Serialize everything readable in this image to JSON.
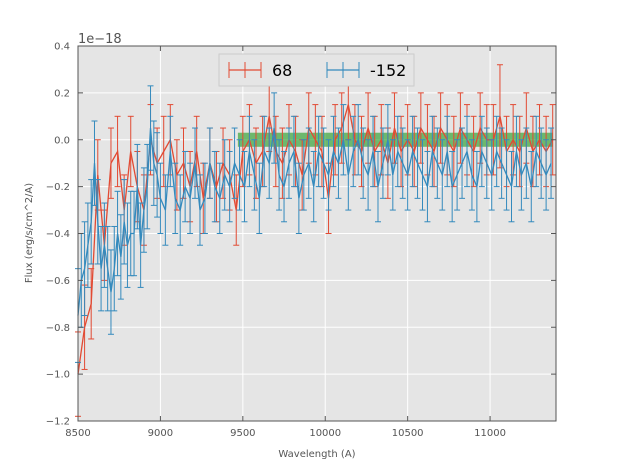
{
  "chart_data": {
    "type": "line",
    "error_bars": true,
    "xlabel": "Wavelength (A)",
    "ylabel": "Flux (erg/s/cm^2/A)",
    "y_offset_label": "1e−18",
    "xlim": [
      8500,
      11400
    ],
    "ylim": [
      -1.2,
      0.4
    ],
    "xticks": [
      8500,
      9000,
      9500,
      10000,
      10500,
      11000
    ],
    "xtick_labels": [
      "8500",
      "9000",
      "9500",
      "10000",
      "10500",
      "11000"
    ],
    "yticks": [
      -1.2,
      -1.0,
      -0.8,
      -0.6,
      -0.4,
      -0.2,
      0.0,
      0.2,
      0.4
    ],
    "ytick_labels": [
      "−1.2",
      "−1.0",
      "−0.8",
      "−0.6",
      "−0.4",
      "−0.2",
      "0.0",
      "0.2",
      "0.4"
    ],
    "grid": true,
    "legend_position": "top-center",
    "background_color": "#e5e5e5",
    "band": {
      "x_start": 9470,
      "x_end": 11380,
      "y_low": -0.03,
      "y_high": 0.03,
      "color": "#2ca02c"
    },
    "series": [
      {
        "name": "68",
        "color": "#e24a33",
        "x": [
          8500,
          8540,
          8580,
          8620,
          8660,
          8700,
          8740,
          8780,
          8820,
          8860,
          8900,
          8940,
          8980,
          9020,
          9060,
          9100,
          9140,
          9180,
          9220,
          9260,
          9300,
          9340,
          9380,
          9420,
          9460,
          9500,
          9540,
          9580,
          9620,
          9660,
          9700,
          9740,
          9780,
          9820,
          9860,
          9900,
          9940,
          9980,
          10020,
          10060,
          10100,
          10140,
          10180,
          10220,
          10260,
          10300,
          10340,
          10380,
          10420,
          10460,
          10500,
          10540,
          10580,
          10620,
          10660,
          10700,
          10740,
          10780,
          10820,
          10860,
          10900,
          10940,
          10980,
          11020,
          11060,
          11100,
          11140,
          11180,
          11220,
          11260,
          11300,
          11340,
          11380
        ],
        "y": [
          -1.0,
          -0.8,
          -0.7,
          -0.15,
          -0.45,
          -0.1,
          -0.05,
          -0.3,
          -0.05,
          -0.2,
          -0.3,
          0.0,
          -0.1,
          -0.05,
          0.0,
          -0.15,
          -0.1,
          -0.2,
          -0.05,
          -0.25,
          -0.1,
          -0.2,
          -0.1,
          -0.15,
          -0.3,
          -0.05,
          0.0,
          -0.1,
          -0.05,
          0.1,
          -0.05,
          -0.1,
          0.0,
          -0.05,
          -0.15,
          0.05,
          0.0,
          -0.05,
          -0.25,
          0.0,
          0.05,
          0.15,
          0.0,
          -0.05,
          0.05,
          -0.05,
          0.0,
          -0.1,
          0.05,
          -0.05,
          0.0,
          -0.05,
          0.05,
          0.0,
          -0.05,
          0.05,
          0.0,
          -0.05,
          0.05,
          0.0,
          -0.05,
          0.05,
          0.0,
          0.0,
          0.1,
          -0.05,
          0.0,
          -0.05,
          0.05,
          -0.05,
          0.0,
          -0.05,
          0.0
        ],
        "err": [
          0.18,
          0.18,
          0.15,
          0.15,
          0.15,
          0.15,
          0.15,
          0.15,
          0.15,
          0.15,
          0.15,
          0.15,
          0.15,
          0.15,
          0.15,
          0.15,
          0.15,
          0.15,
          0.15,
          0.15,
          0.15,
          0.15,
          0.15,
          0.15,
          0.15,
          0.15,
          0.15,
          0.15,
          0.15,
          0.15,
          0.15,
          0.15,
          0.15,
          0.15,
          0.15,
          0.15,
          0.15,
          0.15,
          0.15,
          0.15,
          0.15,
          0.15,
          0.15,
          0.15,
          0.15,
          0.15,
          0.15,
          0.15,
          0.15,
          0.15,
          0.15,
          0.15,
          0.15,
          0.15,
          0.15,
          0.15,
          0.15,
          0.15,
          0.15,
          0.15,
          0.15,
          0.15,
          0.15,
          0.15,
          0.22,
          0.15,
          0.15,
          0.15,
          0.15,
          0.15,
          0.15,
          0.15,
          0.15
        ]
      },
      {
        "name": "-152",
        "color": "#348abd",
        "x": [
          8500,
          8520,
          8540,
          8560,
          8580,
          8600,
          8620,
          8640,
          8660,
          8680,
          8700,
          8720,
          8740,
          8760,
          8780,
          8800,
          8820,
          8840,
          8860,
          8880,
          8900,
          8920,
          8940,
          8960,
          8980,
          9000,
          9030,
          9060,
          9090,
          9120,
          9150,
          9180,
          9210,
          9240,
          9270,
          9300,
          9330,
          9360,
          9390,
          9420,
          9450,
          9480,
          9510,
          9540,
          9570,
          9600,
          9630,
          9660,
          9690,
          9720,
          9750,
          9780,
          9810,
          9840,
          9870,
          9900,
          9930,
          9960,
          9990,
          10020,
          10050,
          10080,
          10110,
          10140,
          10170,
          10200,
          10230,
          10260,
          10290,
          10320,
          10350,
          10380,
          10410,
          10440,
          10470,
          10500,
          10530,
          10560,
          10590,
          10620,
          10650,
          10680,
          10710,
          10740,
          10770,
          10800,
          10830,
          10860,
          10890,
          10920,
          10950,
          10980,
          11010,
          11040,
          11070,
          11100,
          11130,
          11160,
          11190,
          11220,
          11250,
          11280,
          11310,
          11340,
          11370
        ],
        "y": [
          -0.75,
          -0.6,
          -0.55,
          -0.45,
          -0.35,
          -0.1,
          -0.35,
          -0.55,
          -0.45,
          -0.55,
          -0.65,
          -0.55,
          -0.4,
          -0.5,
          -0.35,
          -0.45,
          -0.4,
          -0.4,
          -0.2,
          -0.45,
          -0.3,
          -0.2,
          0.05,
          -0.1,
          -0.15,
          -0.25,
          -0.3,
          -0.05,
          -0.25,
          -0.3,
          -0.2,
          -0.25,
          -0.1,
          -0.3,
          -0.25,
          -0.1,
          -0.2,
          -0.25,
          -0.15,
          -0.2,
          -0.1,
          -0.15,
          -0.2,
          -0.05,
          -0.15,
          -0.25,
          -0.05,
          -0.1,
          0.05,
          -0.15,
          -0.2,
          -0.1,
          -0.05,
          -0.25,
          -0.15,
          -0.1,
          -0.2,
          -0.05,
          -0.1,
          -0.15,
          -0.05,
          -0.1,
          0.0,
          -0.15,
          -0.05,
          0.0,
          -0.1,
          -0.15,
          -0.05,
          -0.2,
          -0.1,
          0.0,
          -0.15,
          -0.05,
          -0.1,
          -0.15,
          -0.05,
          -0.1,
          -0.15,
          -0.2,
          -0.05,
          -0.1,
          -0.15,
          -0.05,
          -0.2,
          -0.15,
          -0.1,
          -0.05,
          -0.15,
          -0.2,
          -0.05,
          -0.1,
          -0.15,
          -0.05,
          -0.1,
          -0.15,
          -0.2,
          -0.05,
          -0.15,
          -0.1,
          -0.2,
          -0.05,
          -0.1,
          -0.15,
          -0.1
        ],
        "err": [
          0.2,
          0.2,
          0.2,
          0.18,
          0.18,
          0.18,
          0.18,
          0.18,
          0.18,
          0.18,
          0.18,
          0.18,
          0.18,
          0.18,
          0.18,
          0.18,
          0.18,
          0.18,
          0.18,
          0.18,
          0.18,
          0.18,
          0.18,
          0.18,
          0.18,
          0.15,
          0.15,
          0.15,
          0.15,
          0.15,
          0.15,
          0.15,
          0.15,
          0.15,
          0.15,
          0.15,
          0.15,
          0.15,
          0.15,
          0.15,
          0.15,
          0.15,
          0.15,
          0.15,
          0.15,
          0.15,
          0.15,
          0.15,
          0.15,
          0.15,
          0.15,
          0.15,
          0.15,
          0.15,
          0.15,
          0.15,
          0.15,
          0.15,
          0.15,
          0.15,
          0.15,
          0.15,
          0.15,
          0.15,
          0.15,
          0.15,
          0.15,
          0.15,
          0.15,
          0.15,
          0.15,
          0.15,
          0.15,
          0.15,
          0.15,
          0.15,
          0.15,
          0.15,
          0.15,
          0.15,
          0.15,
          0.15,
          0.15,
          0.15,
          0.15,
          0.15,
          0.15,
          0.15,
          0.15,
          0.15,
          0.15,
          0.15,
          0.15,
          0.15,
          0.15,
          0.15,
          0.15,
          0.15,
          0.15,
          0.15,
          0.15,
          0.15,
          0.15,
          0.15,
          0.15
        ]
      }
    ]
  }
}
